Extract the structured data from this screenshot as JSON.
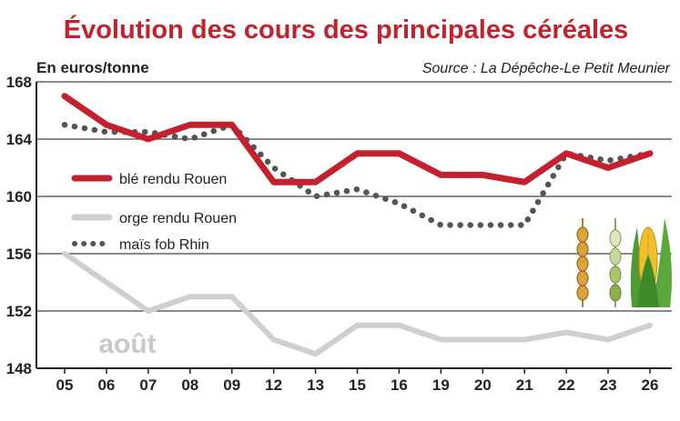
{
  "chart_data": {
    "type": "line",
    "title": "Évolution des cours des principales céréales",
    "ylabel": "En euros/tonne",
    "source": "Source : La Dépêche-Le Petit Meunier",
    "month_label": "août",
    "categories": [
      "05",
      "06",
      "07",
      "08",
      "09",
      "12",
      "13",
      "15",
      "16",
      "19",
      "20",
      "21",
      "22",
      "23",
      "26"
    ],
    "yticks": [
      168,
      164,
      160,
      156,
      152,
      148
    ],
    "ylim": [
      148,
      168
    ],
    "grid": true,
    "legend_position": "left",
    "series": [
      {
        "name": "blé rendu Rouen",
        "color": "#c4202e",
        "style": "solid",
        "values": [
          167,
          165,
          164,
          165,
          165,
          161,
          161,
          163,
          163,
          161.5,
          161.5,
          161,
          163,
          162,
          163
        ]
      },
      {
        "name": "orge rendu Rouen",
        "color": "#cfcfcf",
        "style": "solid",
        "values": [
          156,
          154,
          152,
          153,
          153,
          150,
          149,
          151,
          151,
          150,
          150,
          150,
          150.5,
          150,
          151
        ]
      },
      {
        "name": "maïs fob Rhin",
        "color": "#555555",
        "style": "dotted",
        "values": [
          165,
          164.5,
          164.5,
          164,
          165,
          162,
          160,
          160.5,
          159.5,
          158,
          158,
          158,
          163,
          162.5,
          163
        ]
      }
    ]
  }
}
